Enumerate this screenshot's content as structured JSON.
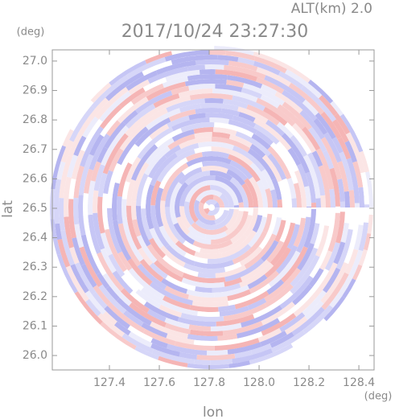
{
  "chart_data": {
    "type": "ppi",
    "title": "2017/10/24 23:27:30",
    "altitude_label": "ALT(km) 2.0",
    "xlabel": "lon",
    "ylabel": "lat",
    "x_unit": "(deg)",
    "y_unit": "(deg)",
    "xlim": [
      127.171,
      128.461
    ],
    "ylim": [
      25.951,
      27.038
    ],
    "xticks": [
      127.4,
      127.6,
      127.8,
      {
        "value": 128,
        "label": "128.0"
      },
      128.2,
      128.4
    ],
    "yticks": [
      {
        "value": 26,
        "label": "26.0"
      },
      26.1,
      26.2,
      26.3,
      26.4,
      26.5,
      26.6,
      26.7,
      26.8,
      26.9,
      {
        "value": 27,
        "label": "27.0"
      }
    ]
  }
}
